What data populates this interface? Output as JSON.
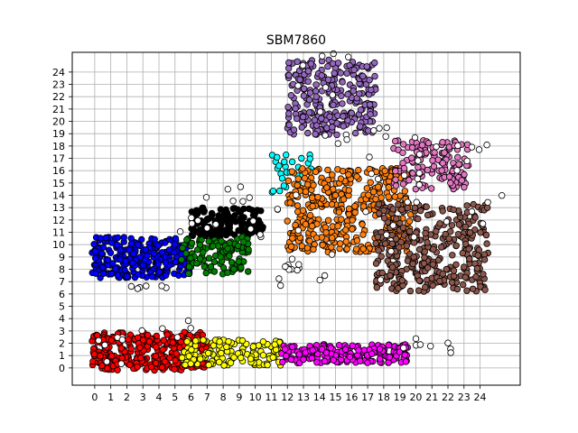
{
  "chart_data": {
    "type": "scatter",
    "title": "SBM7860",
    "xlabel": "",
    "ylabel": "",
    "xlim": [
      -1.4,
      26.5
    ],
    "ylim": [
      -1.4,
      25.6
    ],
    "grid": true,
    "x_ticks": [
      0,
      1,
      2,
      3,
      4,
      5,
      6,
      7,
      8,
      9,
      10,
      11,
      12,
      13,
      14,
      15,
      16,
      17,
      18,
      19,
      20,
      21,
      22,
      23,
      24
    ],
    "y_ticks": [
      0,
      1,
      2,
      3,
      4,
      5,
      6,
      7,
      8,
      9,
      10,
      11,
      12,
      13,
      14,
      15,
      16,
      17,
      18,
      19,
      20,
      21,
      22,
      23,
      24
    ],
    "series": [
      {
        "color": "#0000ff",
        "clusters": [
          {
            "x": [
              -0.2,
              5.9
            ],
            "y": [
              7.3,
              10.6
            ],
            "n": 260
          }
        ]
      },
      {
        "color": "#000000",
        "clusters": [
          {
            "x": [
              6.0,
              10.5
            ],
            "y": [
              10.7,
              13.0
            ],
            "n": 150
          }
        ]
      },
      {
        "color": "#008000",
        "clusters": [
          {
            "x": [
              5.4,
              9.6
            ],
            "y": [
              7.6,
              10.8
            ],
            "n": 110
          }
        ]
      },
      {
        "color": "#00ffff",
        "clusters": [
          {
            "x": [
              11.0,
              13.7
            ],
            "y": [
              14.2,
              17.4
            ],
            "n": 30
          }
        ]
      },
      {
        "color": "#9467bd",
        "clusters": [
          {
            "x": [
              12.0,
              17.5
            ],
            "y": [
              18.9,
              25.0
            ],
            "n": 260
          }
        ]
      },
      {
        "color": "#ff7f0e",
        "clusters": [
          {
            "x": [
              12.0,
              19.7
            ],
            "y": [
              9.4,
              16.2
            ],
            "n": 380
          }
        ]
      },
      {
        "color": "#e377c2",
        "clusters": [
          {
            "x": [
              18.6,
              23.3
            ],
            "y": [
              14.5,
              18.5
            ],
            "n": 140
          }
        ]
      },
      {
        "color": "#8c564b",
        "clusters": [
          {
            "x": [
              17.5,
              24.5
            ],
            "y": [
              6.2,
              13.3
            ],
            "n": 330
          }
        ]
      },
      {
        "color": "#ff0000",
        "clusters": [
          {
            "x": [
              -0.2,
              7.0
            ],
            "y": [
              -0.2,
              2.9
            ],
            "n": 300
          }
        ]
      },
      {
        "color": "#ffff00",
        "clusters": [
          {
            "x": [
              5.4,
              11.6
            ],
            "y": [
              0.2,
              2.3
            ],
            "n": 140
          }
        ]
      },
      {
        "color": "#ff00ff",
        "clusters": [
          {
            "x": [
              11.6,
              19.5
            ],
            "y": [
              0.4,
              1.9
            ],
            "n": 190
          }
        ]
      },
      {
        "color": "#ffffff",
        "clusters": [
          {
            "x": [
              -0.2,
              1.8
            ],
            "y": [
              0.0,
              2.9
            ],
            "n": 8
          },
          {
            "x": [
              2.0,
              6.3
            ],
            "y": [
              2.0,
              3.9
            ],
            "n": 5
          },
          {
            "x": [
              2.0,
              4.8
            ],
            "y": [
              6.4,
              7.0
            ],
            "n": 6
          },
          {
            "x": [
              5.0,
              12.7
            ],
            "y": [
              10.5,
              14.8
            ],
            "n": 20
          },
          {
            "x": [
              11.0,
              14.8
            ],
            "y": [
              5.8,
              9.5
            ],
            "n": 14
          },
          {
            "x": [
              12.2,
              16.5
            ],
            "y": [
              18.2,
              25.5
            ],
            "n": 12
          },
          {
            "x": [
              16.8,
              20.5
            ],
            "y": [
              6.3,
              20.0
            ],
            "n": 16
          },
          {
            "x": [
              19.0,
              25.5
            ],
            "y": [
              11.0,
              18.7
            ],
            "n": 18
          },
          {
            "x": [
              19.0,
              22.5
            ],
            "y": [
              1.2,
              2.5
            ],
            "n": 8
          }
        ]
      }
    ]
  }
}
